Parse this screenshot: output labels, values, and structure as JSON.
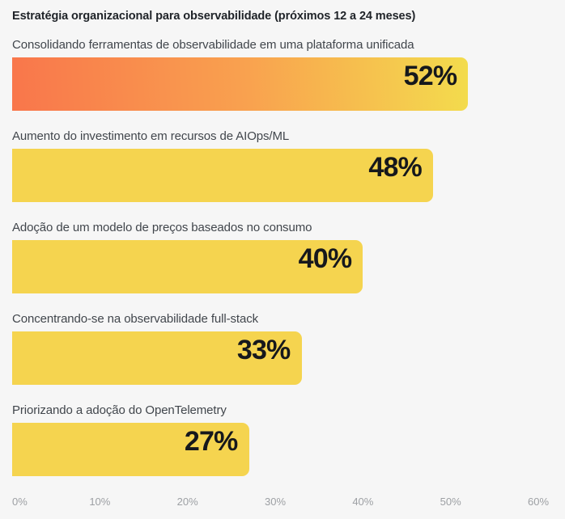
{
  "chart_data": {
    "type": "bar",
    "orientation": "horizontal",
    "title": "Estratégia organizacional para observabilidade (próximos 12 a 24 meses)",
    "categories": [
      "Consolidando ferramentas de observabilidade em uma plataforma unificada",
      "Aumento do investimento em recursos de AIOps/ML",
      "Adoção de um modelo de preços baseados no consumo",
      "Concentrando-se na observabilidade full-stack",
      "Priorizando a adoção do OpenTelemetry"
    ],
    "values": [
      52,
      48,
      40,
      33,
      27
    ],
    "value_labels": [
      "52%",
      "48%",
      "40%",
      "33%",
      "27%"
    ],
    "xlabel": "",
    "ylabel": "",
    "xlim": [
      0,
      60
    ],
    "x_tick_labels": [
      "0%",
      "10%",
      "20%",
      "30%",
      "40%",
      "50%",
      "60%"
    ],
    "grid": false,
    "legend": false,
    "colors": {
      "background": "#F6F6F6",
      "bar_fill": "#F5D44F",
      "first_bar_gradient_start": "#F9764B",
      "first_bar_gradient_mid": "#F9A24F",
      "first_bar_gradient_end": "#F3DC4D",
      "value_text": "#16181C",
      "category_text": "#41464C",
      "title_text": "#1F2328",
      "axis_text": "#9DA0A4"
    },
    "style_notes": "first bar uses orange-to-yellow gradient; all other bars flat yellow; value labels inside bars, right-aligned"
  }
}
